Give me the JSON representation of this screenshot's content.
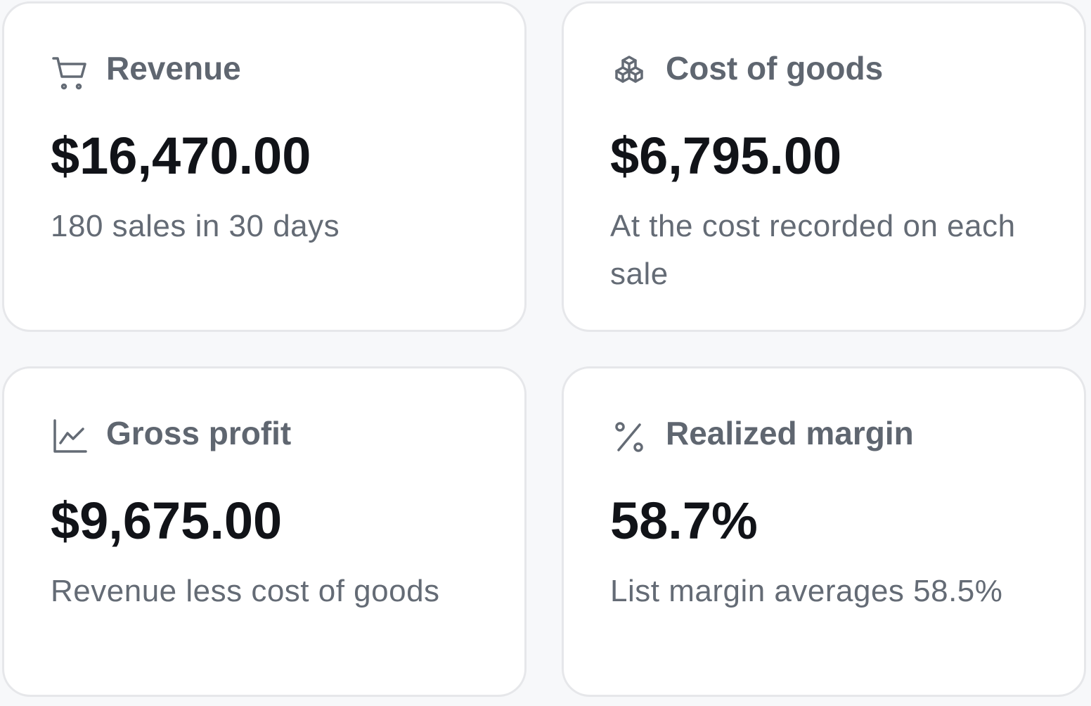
{
  "cards": [
    {
      "title": "Revenue",
      "value": "$16,470.00",
      "description": "180 sales in 30 days"
    },
    {
      "title": "Cost of goods",
      "value": "$6,795.00",
      "description": "At the cost recorded on each sale"
    },
    {
      "title": "Gross profit",
      "value": "$9,675.00",
      "description": "Revenue less cost of goods"
    },
    {
      "title": "Realized margin",
      "value": "58.7%",
      "description": "List margin averages 58.5%"
    }
  ]
}
